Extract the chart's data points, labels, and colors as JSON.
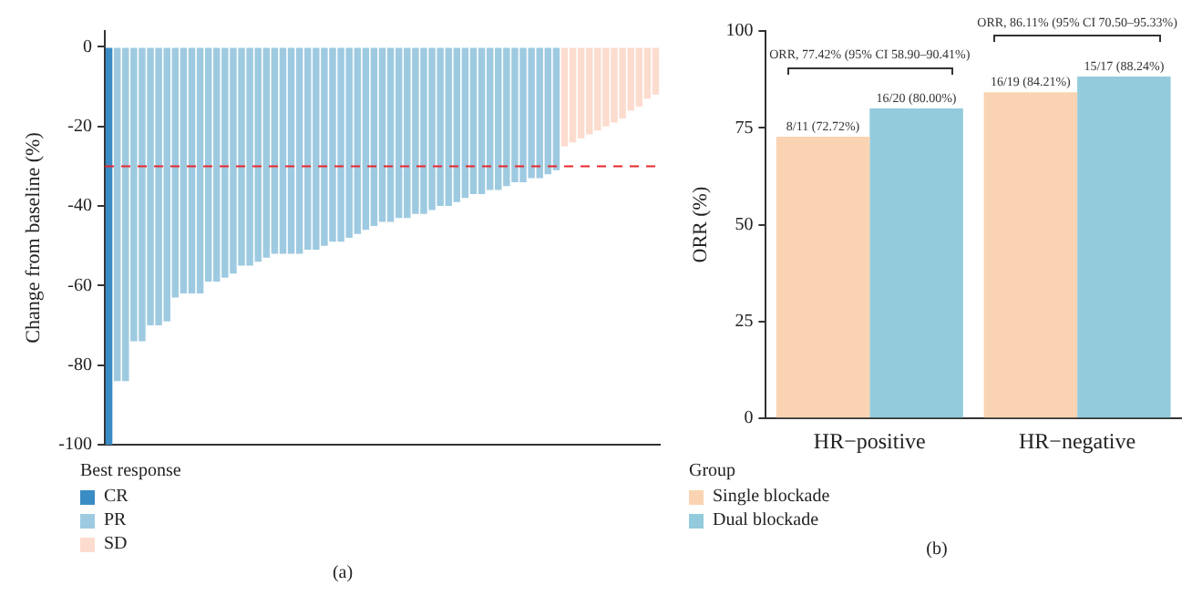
{
  "chart_data": [
    {
      "type": "bar",
      "ylabel": "Change from baseline (%)",
      "categories": [
        null,
        null,
        null,
        null,
        null,
        null,
        null,
        null,
        null,
        null,
        null,
        null,
        null,
        null,
        null,
        null,
        null,
        null,
        null,
        null,
        null,
        null,
        null,
        null,
        null,
        null,
        null,
        null,
        null,
        null,
        null,
        null,
        null,
        null,
        null,
        null,
        null,
        null,
        null,
        null,
        null,
        null,
        null,
        null,
        null,
        null,
        null,
        null,
        null,
        null,
        null,
        null,
        null,
        null,
        null,
        null,
        null,
        null,
        null,
        null,
        null,
        null,
        null,
        null,
        null,
        null,
        null
      ],
      "series": [
        {
          "name": "CR",
          "color": "#3a8cc4",
          "values": [
            -100,
            null,
            null,
            null,
            null,
            null,
            null,
            null,
            null,
            null,
            null,
            null,
            null,
            null,
            null,
            null,
            null,
            null,
            null,
            null,
            null,
            null,
            null,
            null,
            null,
            null,
            null,
            null,
            null,
            null,
            null,
            null,
            null,
            null,
            null,
            null,
            null,
            null,
            null,
            null,
            null,
            null,
            null,
            null,
            null,
            null,
            null,
            null,
            null,
            null,
            null,
            null,
            null,
            null,
            null,
            null,
            null,
            null,
            null,
            null,
            null,
            null,
            null,
            null,
            null,
            null,
            null
          ]
        },
        {
          "name": "PR",
          "color": "#9ecae1",
          "values": [
            null,
            -84,
            -84,
            -74,
            -74,
            -70,
            -70,
            -69,
            -63,
            -62,
            -62,
            -62,
            -59,
            -59,
            -58,
            -57,
            -55,
            -55,
            -54,
            -53,
            -52,
            -52,
            -52,
            -52,
            -51,
            -51,
            -50,
            -49,
            -49,
            -48,
            -47,
            -46,
            -45,
            -44,
            -44,
            -43,
            -43,
            -42,
            -42,
            -41,
            -40,
            -40,
            -39,
            -38,
            -37,
            -37,
            -36,
            -36,
            -35,
            -34,
            -34,
            -33,
            -33,
            -32,
            -31,
            null,
            null,
            null,
            null,
            null,
            null,
            null,
            null,
            null,
            null,
            null,
            null
          ]
        },
        {
          "name": "SD",
          "color": "#fcdcce",
          "values": [
            null,
            null,
            null,
            null,
            null,
            null,
            null,
            null,
            null,
            null,
            null,
            null,
            null,
            null,
            null,
            null,
            null,
            null,
            null,
            null,
            null,
            null,
            null,
            null,
            null,
            null,
            null,
            null,
            null,
            null,
            null,
            null,
            null,
            null,
            null,
            null,
            null,
            null,
            null,
            null,
            null,
            null,
            null,
            null,
            null,
            null,
            null,
            null,
            null,
            null,
            null,
            null,
            null,
            null,
            null,
            -25,
            -24,
            -23,
            -22,
            -21,
            -20,
            -19,
            -18,
            -16,
            -15,
            -13,
            -12
          ]
        }
      ],
      "ylim": [
        -100,
        4
      ],
      "yticks": [
        -100,
        -80,
        -60,
        -40,
        -20,
        0
      ],
      "tick_labels": "y",
      "ref_lines": [
        {
          "axis": "y",
          "value": -30,
          "color": "#e8262a",
          "line_style": "dashed"
        }
      ],
      "legend": "bottom left",
      "legend_title": "Best response",
      "annotations": [
        "(a)"
      ]
    },
    {
      "type": "bar",
      "ylabel": "ORR (%)",
      "categories": [
        "HR−positive",
        "HR−negative"
      ],
      "series": [
        {
          "name": "Single blockade",
          "color": "#fad4b2",
          "values": [
            72.72,
            84.21
          ],
          "value_labels": [
            "8/11 (72.72%)",
            "16/19 (84.21%)"
          ]
        },
        {
          "name": "Dual blockade",
          "color": "#93cbdc",
          "values": [
            80.0,
            88.24
          ],
          "value_labels": [
            "16/20 (80.00%)",
            "15/17 (88.24%)"
          ]
        }
      ],
      "ylim": [
        0,
        100
      ],
      "yticks": [
        0,
        25,
        50,
        75,
        100
      ],
      "legend": "bottom left",
      "legend_title": "Group",
      "annotations": [
        "ORR, 77.42% (95% CI 58.90–90.41%)",
        "ORR, 86.11% (95% CI 70.50–95.33%)",
        "(b)"
      ]
    }
  ]
}
